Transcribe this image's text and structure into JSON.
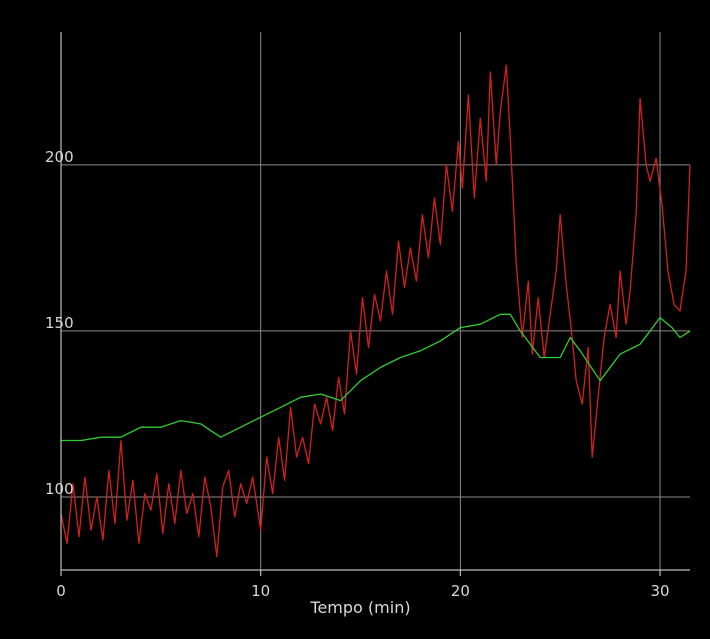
{
  "chart_data": {
    "type": "line",
    "title": "",
    "xlabel": "Tempo (min)",
    "ylabel": "",
    "xlim": [
      0,
      31.5
    ],
    "ylim": [
      78,
      240
    ],
    "x_ticks": [
      0,
      10,
      20,
      30
    ],
    "y_ticks": [
      100,
      150,
      200
    ],
    "grid": true,
    "background": "#000000",
    "grid_color": "#8a8a8a",
    "series": [
      {
        "color": "#d42020",
        "points": [
          [
            0,
            95
          ],
          [
            0.3,
            86
          ],
          [
            0.6,
            104
          ],
          [
            0.9,
            88
          ],
          [
            1.2,
            106
          ],
          [
            1.5,
            90
          ],
          [
            1.8,
            100
          ],
          [
            2.1,
            87
          ],
          [
            2.4,
            108
          ],
          [
            2.7,
            92
          ],
          [
            3.0,
            117
          ],
          [
            3.3,
            93
          ],
          [
            3.6,
            105
          ],
          [
            3.9,
            86
          ],
          [
            4.2,
            101
          ],
          [
            4.5,
            96
          ],
          [
            4.8,
            107
          ],
          [
            5.1,
            89
          ],
          [
            5.4,
            104
          ],
          [
            5.7,
            92
          ],
          [
            6.0,
            108
          ],
          [
            6.3,
            95
          ],
          [
            6.6,
            101
          ],
          [
            6.9,
            88
          ],
          [
            7.2,
            106
          ],
          [
            7.5,
            97
          ],
          [
            7.8,
            82
          ],
          [
            8.1,
            103
          ],
          [
            8.4,
            108
          ],
          [
            8.7,
            94
          ],
          [
            9.0,
            104
          ],
          [
            9.3,
            98
          ],
          [
            9.6,
            106
          ],
          [
            10.0,
            90
          ],
          [
            10.3,
            112
          ],
          [
            10.6,
            101
          ],
          [
            10.9,
            118
          ],
          [
            11.2,
            105
          ],
          [
            11.5,
            127
          ],
          [
            11.8,
            112
          ],
          [
            12.1,
            118
          ],
          [
            12.4,
            110
          ],
          [
            12.7,
            128
          ],
          [
            13.0,
            122
          ],
          [
            13.3,
            130
          ],
          [
            13.6,
            120
          ],
          [
            13.9,
            136
          ],
          [
            14.2,
            125
          ],
          [
            14.5,
            150
          ],
          [
            14.8,
            137
          ],
          [
            15.1,
            160
          ],
          [
            15.4,
            145
          ],
          [
            15.7,
            161
          ],
          [
            16.0,
            153
          ],
          [
            16.3,
            168
          ],
          [
            16.6,
            155
          ],
          [
            16.9,
            177
          ],
          [
            17.2,
            163
          ],
          [
            17.5,
            175
          ],
          [
            17.8,
            165
          ],
          [
            18.1,
            185
          ],
          [
            18.4,
            172
          ],
          [
            18.7,
            190
          ],
          [
            19.0,
            176
          ],
          [
            19.3,
            200
          ],
          [
            19.6,
            186
          ],
          [
            19.9,
            207
          ],
          [
            20.1,
            193
          ],
          [
            20.4,
            221
          ],
          [
            20.7,
            190
          ],
          [
            21.0,
            214
          ],
          [
            21.3,
            195
          ],
          [
            21.5,
            228
          ],
          [
            21.8,
            200
          ],
          [
            22.0,
            216
          ],
          [
            22.3,
            230
          ],
          [
            22.5,
            208
          ],
          [
            22.8,
            170
          ],
          [
            23.1,
            148
          ],
          [
            23.4,
            165
          ],
          [
            23.6,
            143
          ],
          [
            23.9,
            160
          ],
          [
            24.2,
            142
          ],
          [
            24.5,
            155
          ],
          [
            24.8,
            168
          ],
          [
            25.0,
            185
          ],
          [
            25.3,
            164
          ],
          [
            25.6,
            148
          ],
          [
            25.8,
            135
          ],
          [
            26.1,
            128
          ],
          [
            26.4,
            145
          ],
          [
            26.6,
            112
          ],
          [
            26.9,
            130
          ],
          [
            27.2,
            148
          ],
          [
            27.5,
            158
          ],
          [
            27.8,
            148
          ],
          [
            28.0,
            168
          ],
          [
            28.3,
            152
          ],
          [
            28.5,
            162
          ],
          [
            28.8,
            185
          ],
          [
            29.0,
            220
          ],
          [
            29.3,
            200
          ],
          [
            29.5,
            195
          ],
          [
            29.8,
            202
          ],
          [
            30.1,
            188
          ],
          [
            30.4,
            168
          ],
          [
            30.7,
            158
          ],
          [
            31.0,
            156
          ],
          [
            31.3,
            168
          ],
          [
            31.5,
            200
          ]
        ]
      },
      {
        "color": "#33cc33",
        "points": [
          [
            0,
            117
          ],
          [
            1,
            117
          ],
          [
            2,
            118
          ],
          [
            3,
            118
          ],
          [
            4,
            121
          ],
          [
            5,
            121
          ],
          [
            6,
            123
          ],
          [
            7,
            122
          ],
          [
            8,
            118
          ],
          [
            9,
            121
          ],
          [
            10,
            124
          ],
          [
            11,
            127
          ],
          [
            12,
            130
          ],
          [
            13,
            131
          ],
          [
            14,
            129
          ],
          [
            15,
            135
          ],
          [
            16,
            139
          ],
          [
            17,
            142
          ],
          [
            18,
            144
          ],
          [
            19,
            147
          ],
          [
            20,
            151
          ],
          [
            21,
            152
          ],
          [
            22,
            155
          ],
          [
            22.5,
            155
          ],
          [
            23,
            150
          ],
          [
            24,
            142
          ],
          [
            25,
            142
          ],
          [
            25.5,
            148
          ],
          [
            26,
            144
          ],
          [
            27,
            135
          ],
          [
            28,
            143
          ],
          [
            29,
            146
          ],
          [
            30,
            154
          ],
          [
            30.6,
            151
          ],
          [
            31,
            148
          ],
          [
            31.5,
            150
          ]
        ]
      }
    ]
  }
}
